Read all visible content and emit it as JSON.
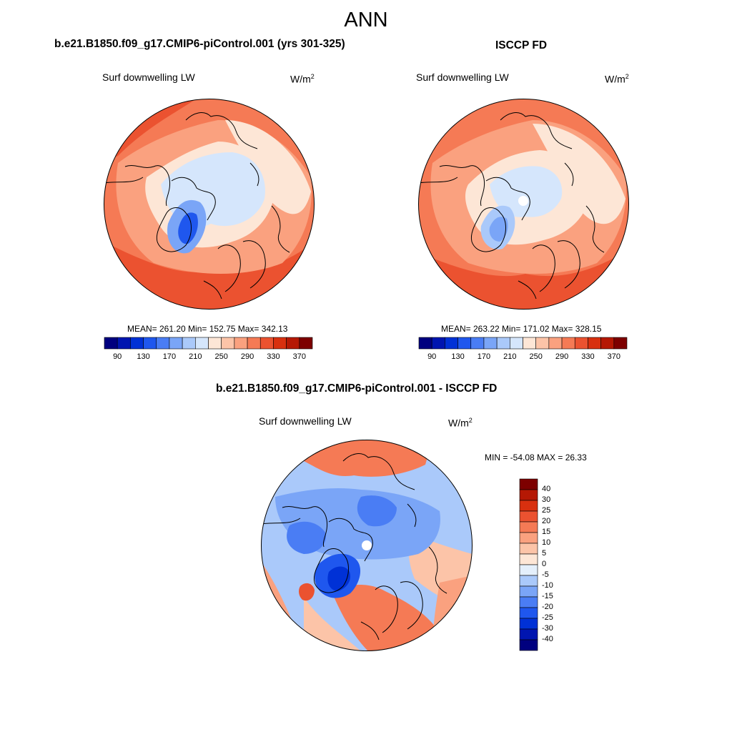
{
  "title": "ANN",
  "panels": [
    {
      "title": "b.e21.B1850.f09_g17.CMIP6-piControl.001 (yrs 301-325)",
      "variable": "Surf downwelling LW",
      "units": "W/m",
      "units_exp": "2",
      "stats": "MEAN= 261.20  Min= 152.75  Max= 342.13"
    },
    {
      "title": "ISCCP FD",
      "variable": "Surf downwelling LW",
      "units": "W/m",
      "units_exp": "2",
      "stats": "MEAN= 263.22  Min= 171.02  Max= 328.15"
    },
    {
      "title": "b.e21.B1850.f09_g17.CMIP6-piControl.001 - ISCCP FD",
      "variable": "Surf downwelling LW",
      "units": "W/m",
      "units_exp": "2",
      "stats": "MIN = -54.08 MAX =  26.33"
    }
  ],
  "colorbar_abs": {
    "colors": [
      "#00007f",
      "#0015b0",
      "#0031d6",
      "#1f57ee",
      "#4a7df4",
      "#7aa5f7",
      "#aac9fa",
      "#d5e6fc",
      "#fde6d6",
      "#fcc4a8",
      "#faa17f",
      "#f57a55",
      "#eb5230",
      "#d8300f",
      "#b51804",
      "#7d0000"
    ],
    "tick_labels": [
      "90",
      "130",
      "170",
      "210",
      "250",
      "290",
      "330",
      "370"
    ]
  },
  "colorbar_diff": {
    "colors": [
      "#7d0000",
      "#b51804",
      "#d8300f",
      "#eb5230",
      "#f57a55",
      "#faa17f",
      "#fcc4a8",
      "#fde6d6",
      "#e4effb",
      "#aac9fa",
      "#7aa5f7",
      "#4a7df4",
      "#1f57ee",
      "#0031d6",
      "#0015b0",
      "#00007f"
    ],
    "tick_labels": [
      "40",
      "30",
      "25",
      "20",
      "15",
      "10",
      "5",
      "0",
      "-5",
      "-10",
      "-15",
      "-20",
      "-25",
      "-30",
      "-40"
    ]
  },
  "map_fills": {
    "warm_edge": "#eb5230",
    "warm_mid": "#faa17f",
    "warm_light": "#fde6d6",
    "cool_light": "#d5e6fc",
    "cool_mid": "#7aa5f7",
    "cool_dark": "#1f57ee",
    "missing": "#ffffff"
  }
}
